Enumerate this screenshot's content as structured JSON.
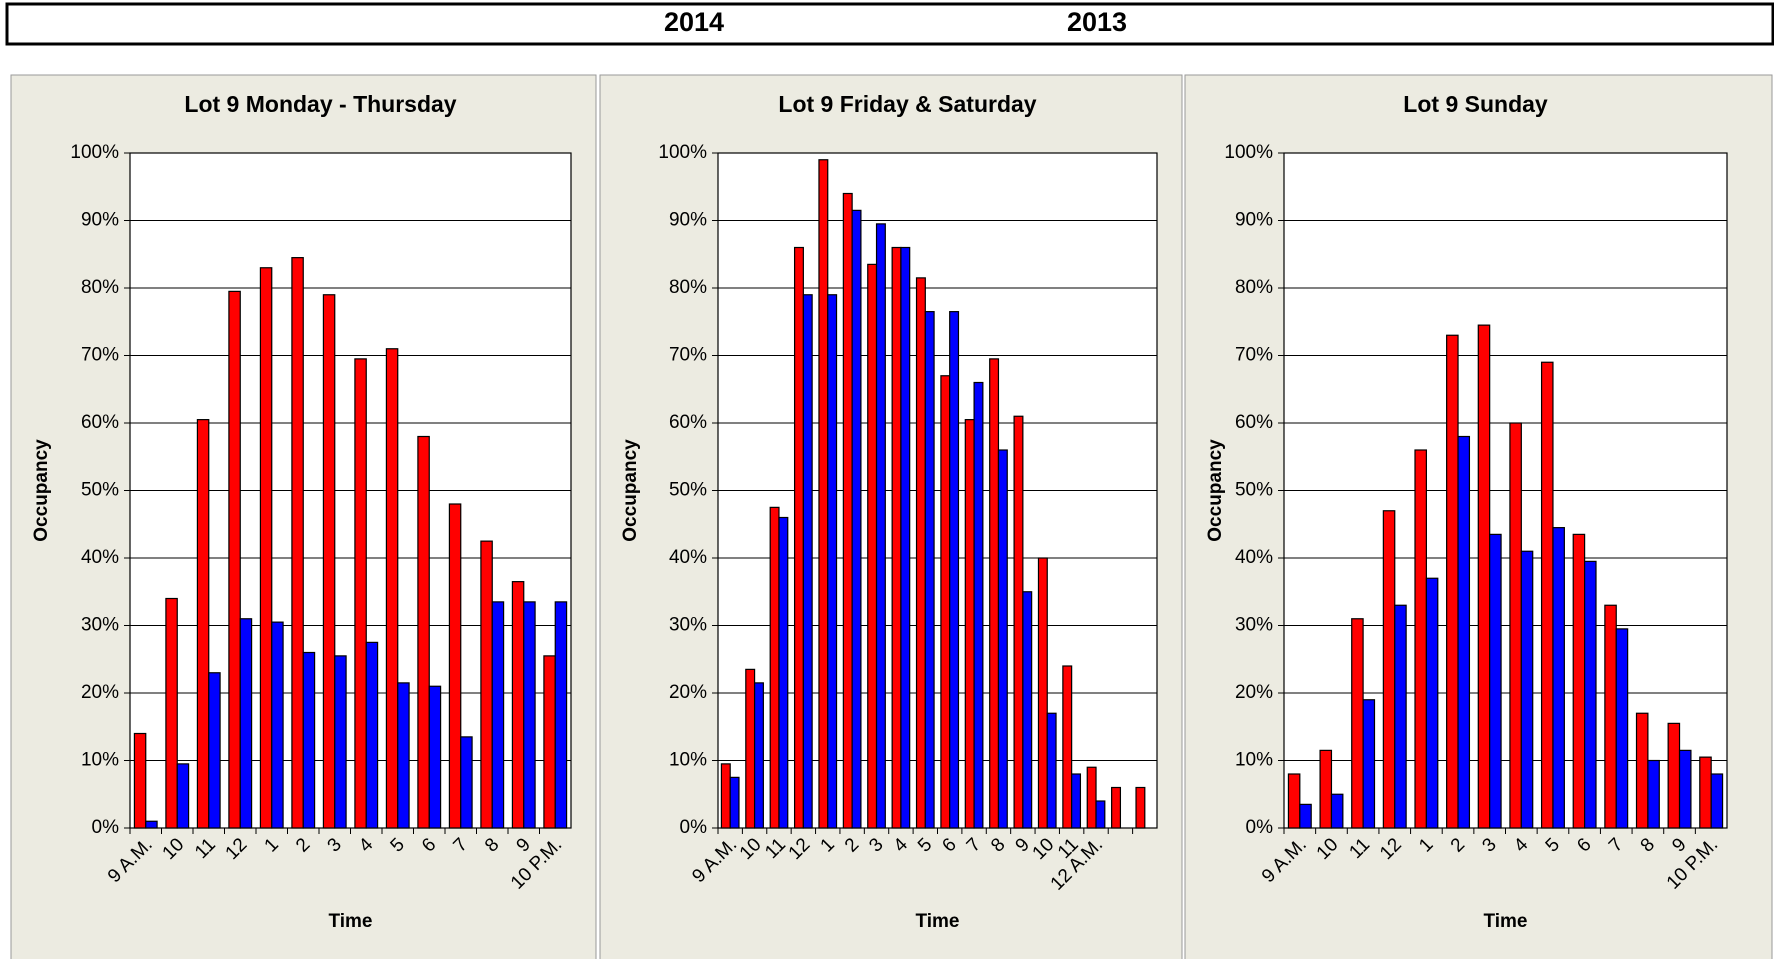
{
  "chart_data": [
    {
      "type": "bar",
      "title": "Lot 9 Monday - Thursday",
      "x_label": "Time",
      "y_label": "Occupancy",
      "categories": [
        "9 A.M.",
        "10",
        "11",
        "12",
        "1",
        "2",
        "3",
        "4",
        "5",
        "6",
        "7",
        "8",
        "9",
        "10 P.M."
      ],
      "series": [
        {
          "name": "2014",
          "color": "#ff0000",
          "values": [
            14,
            34,
            60.5,
            79.5,
            83,
            84.5,
            79,
            69.5,
            71,
            58,
            48,
            42.5,
            36.5,
            25.5
          ]
        },
        {
          "name": "2013",
          "color": "#0000ff",
          "values": [
            1,
            9.5,
            23,
            31,
            30.5,
            26,
            25.5,
            27.5,
            21.5,
            21,
            13.5,
            33.5,
            33.5,
            33.5
          ]
        }
      ],
      "ylim": [
        0,
        100
      ],
      "yticks": [
        {
          "value": 0,
          "label": "0%"
        },
        {
          "value": 10,
          "label": "10%"
        },
        {
          "value": 20,
          "label": "20%"
        },
        {
          "value": 30,
          "label": "30%"
        },
        {
          "value": 40,
          "label": "40%"
        },
        {
          "value": 50,
          "label": "50%"
        },
        {
          "value": 60,
          "label": "60%"
        },
        {
          "value": 70,
          "label": "70%"
        },
        {
          "value": 80,
          "label": "80%"
        },
        {
          "value": 90,
          "label": "90%"
        },
        {
          "value": 100,
          "label": "100%"
        }
      ],
      "grid": true
    },
    {
      "type": "bar",
      "title": "Lot 9 Friday & Saturday",
      "x_label": "Time",
      "y_label": "Occupancy",
      "categories": [
        "9 A.M.",
        "10",
        "11",
        "12",
        "1",
        "2",
        "3",
        "4",
        "5",
        "6",
        "7",
        "8",
        "9",
        "10",
        "11",
        "12 A.M.",
        null,
        null
      ],
      "series": [
        {
          "name": "2014",
          "color": "#ff0000",
          "values": [
            9.5,
            23.5,
            47.5,
            86,
            99,
            94,
            83.5,
            86,
            81.5,
            67,
            60.5,
            69.5,
            61,
            40,
            24,
            9,
            6,
            6
          ]
        },
        {
          "name": "2013",
          "color": "#0000ff",
          "values": [
            7.5,
            21.5,
            46,
            79,
            79,
            91.5,
            89.5,
            86,
            76.5,
            76.5,
            66,
            56,
            35,
            17,
            8,
            4,
            null,
            null
          ]
        }
      ],
      "ylim": [
        0,
        100
      ],
      "yticks": [
        {
          "value": 0,
          "label": "0%"
        },
        {
          "value": 10,
          "label": "10%"
        },
        {
          "value": 20,
          "label": "20%"
        },
        {
          "value": 30,
          "label": "30%"
        },
        {
          "value": 40,
          "label": "40%"
        },
        {
          "value": 50,
          "label": "50%"
        },
        {
          "value": 60,
          "label": "60%"
        },
        {
          "value": 70,
          "label": "70%"
        },
        {
          "value": 80,
          "label": "80%"
        },
        {
          "value": 90,
          "label": "90%"
        },
        {
          "value": 100,
          "label": "100%"
        }
      ],
      "grid": true
    },
    {
      "type": "bar",
      "title": "Lot 9 Sunday",
      "x_label": "Time",
      "y_label": "Occupancy",
      "categories": [
        "9 A.M.",
        "10",
        "11",
        "12",
        "1",
        "2",
        "3",
        "4",
        "5",
        "6",
        "7",
        "8",
        "9",
        "10 P.M."
      ],
      "series": [
        {
          "name": "2014",
          "color": "#ff0000",
          "values": [
            8,
            11.5,
            31,
            47,
            56,
            73,
            74.5,
            60,
            69,
            43.5,
            33,
            17,
            15.5,
            10.5
          ]
        },
        {
          "name": "2013",
          "color": "#0000ff",
          "values": [
            3.5,
            5,
            19,
            33,
            37,
            58,
            43.5,
            41,
            44.5,
            39.5,
            29.5,
            10,
            11.5,
            8
          ]
        }
      ],
      "ylim": [
        0,
        100
      ],
      "yticks": [
        {
          "value": 0,
          "label": "0%"
        },
        {
          "value": 10,
          "label": "10%"
        },
        {
          "value": 20,
          "label": "20%"
        },
        {
          "value": 30,
          "label": "30%"
        },
        {
          "value": 40,
          "label": "40%"
        },
        {
          "value": 50,
          "label": "50%"
        },
        {
          "value": 60,
          "label": "60%"
        },
        {
          "value": 70,
          "label": "70%"
        },
        {
          "value": 80,
          "label": "80%"
        },
        {
          "value": 90,
          "label": "90%"
        },
        {
          "value": 100,
          "label": "100%"
        }
      ],
      "grid": true
    }
  ]
}
